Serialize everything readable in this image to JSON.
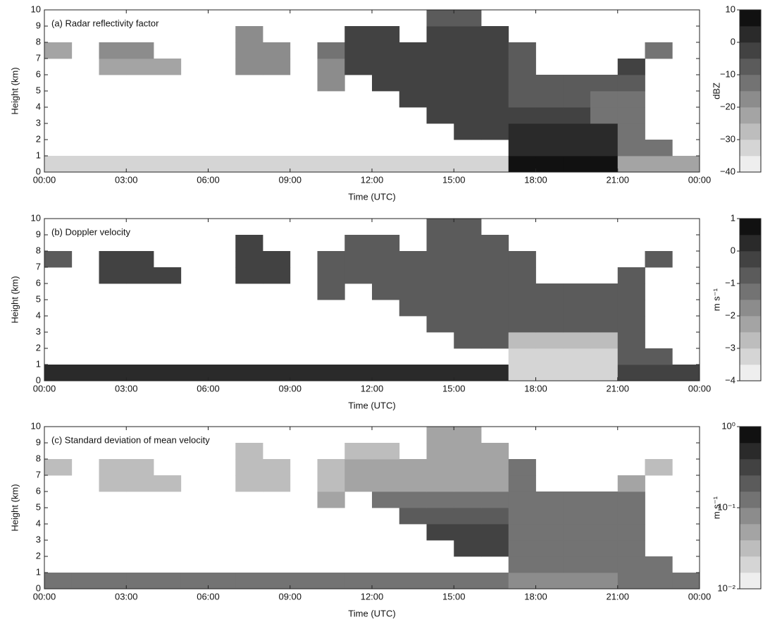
{
  "chart_data": [
    {
      "type": "heatmap",
      "title": "(a) Radar reflectivity factor",
      "xlabel": "Time (UTC)",
      "ylabel": "Height (km)",
      "xlim": [
        0,
        24
      ],
      "xticks": [
        {
          "value": 0,
          "label": "00:00"
        },
        {
          "value": 3,
          "label": "03:00"
        },
        {
          "value": 6,
          "label": "06:00"
        },
        {
          "value": 9,
          "label": "09:00"
        },
        {
          "value": 12,
          "label": "12:00"
        },
        {
          "value": 15,
          "label": "15:00"
        },
        {
          "value": 18,
          "label": "18:00"
        },
        {
          "value": 21,
          "label": "21:00"
        },
        {
          "value": 24,
          "label": "00:00"
        }
      ],
      "ylim": [
        0,
        10
      ],
      "yticks": [
        0,
        1,
        2,
        3,
        4,
        5,
        6,
        7,
        8,
        9,
        10
      ],
      "xbins": [
        0,
        1,
        2,
        3,
        4,
        5,
        6,
        7,
        8,
        9,
        10,
        11,
        12,
        13,
        14,
        15,
        16,
        17,
        18,
        19,
        20,
        21,
        22,
        23,
        24
      ],
      "ybins": [
        0,
        1,
        2,
        3,
        4,
        5,
        6,
        7,
        8,
        9,
        10
      ],
      "z": [
        [
          -35,
          -35,
          -35,
          -35,
          -35,
          -35,
          -35,
          -35,
          -35,
          -35,
          -35,
          -35,
          -35,
          -35,
          -35,
          -35,
          -35,
          5,
          5,
          5,
          5,
          -25,
          -25,
          -25
        ],
        [
          null,
          null,
          null,
          null,
          null,
          null,
          null,
          null,
          null,
          null,
          null,
          null,
          null,
          null,
          null,
          null,
          null,
          0,
          0,
          0,
          0,
          -15,
          -15,
          null
        ],
        [
          null,
          null,
          null,
          null,
          null,
          null,
          null,
          null,
          null,
          null,
          null,
          null,
          null,
          null,
          null,
          -5,
          -5,
          0,
          0,
          0,
          0,
          -15,
          null,
          null
        ],
        [
          null,
          null,
          null,
          null,
          null,
          null,
          null,
          null,
          null,
          null,
          null,
          null,
          null,
          null,
          -5,
          -5,
          -5,
          -5,
          -5,
          -5,
          -15,
          -15,
          null,
          null
        ],
        [
          null,
          null,
          null,
          null,
          null,
          null,
          null,
          null,
          null,
          null,
          null,
          null,
          null,
          -5,
          -5,
          -5,
          -5,
          -10,
          -10,
          -10,
          -15,
          -15,
          null,
          null
        ],
        [
          null,
          null,
          null,
          null,
          null,
          null,
          null,
          null,
          null,
          null,
          -20,
          null,
          -5,
          -5,
          -5,
          -5,
          -5,
          -10,
          -10,
          -10,
          -10,
          -10,
          null,
          null
        ],
        [
          null,
          null,
          -25,
          -25,
          -25,
          null,
          null,
          -20,
          -20,
          null,
          -20,
          -5,
          -5,
          -5,
          -5,
          -5,
          -5,
          -10,
          null,
          null,
          null,
          -5,
          null,
          null
        ],
        [
          -25,
          null,
          -20,
          -20,
          null,
          null,
          null,
          -20,
          -20,
          null,
          -15,
          -5,
          -5,
          -5,
          -5,
          -5,
          -5,
          -10,
          null,
          null,
          null,
          null,
          -15,
          null
        ],
        [
          null,
          null,
          null,
          null,
          null,
          null,
          null,
          -20,
          null,
          null,
          null,
          -5,
          -5,
          null,
          -5,
          -5,
          -5,
          null,
          null,
          null,
          null,
          null,
          null,
          null
        ],
        [
          null,
          null,
          null,
          null,
          null,
          null,
          null,
          null,
          null,
          null,
          null,
          null,
          null,
          null,
          -10,
          -10,
          null,
          null,
          null,
          null,
          null,
          null,
          null,
          null
        ]
      ],
      "colorbar": {
        "label": "dBZ",
        "lim": [
          -40,
          10
        ],
        "ticks": [
          {
            "value": -40,
            "label": "−40"
          },
          {
            "value": -30,
            "label": "−30"
          },
          {
            "value": -20,
            "label": "−20"
          },
          {
            "value": -10,
            "label": "−10"
          },
          0,
          10
        ],
        "log": false,
        "colors": [
          "#eeeeee",
          "#111111"
        ]
      }
    },
    {
      "type": "heatmap",
      "title": "(b) Doppler velocity",
      "xlabel": "Time (UTC)",
      "ylabel": "Height (km)",
      "xlim": [
        0,
        24
      ],
      "xticks": [
        {
          "value": 0,
          "label": "00:00"
        },
        {
          "value": 3,
          "label": "03:00"
        },
        {
          "value": 6,
          "label": "06:00"
        },
        {
          "value": 9,
          "label": "09:00"
        },
        {
          "value": 12,
          "label": "12:00"
        },
        {
          "value": 15,
          "label": "15:00"
        },
        {
          "value": 18,
          "label": "18:00"
        },
        {
          "value": 21,
          "label": "21:00"
        },
        {
          "value": 24,
          "label": "00:00"
        }
      ],
      "ylim": [
        0,
        10
      ],
      "yticks": [
        0,
        1,
        2,
        3,
        4,
        5,
        6,
        7,
        8,
        9,
        10
      ],
      "xbins": [
        0,
        1,
        2,
        3,
        4,
        5,
        6,
        7,
        8,
        9,
        10,
        11,
        12,
        13,
        14,
        15,
        16,
        17,
        18,
        19,
        20,
        21,
        22,
        23,
        24
      ],
      "ybins": [
        0,
        1,
        2,
        3,
        4,
        5,
        6,
        7,
        8,
        9,
        10
      ],
      "z": [
        [
          0,
          0,
          0,
          0,
          0,
          0,
          0,
          0,
          0,
          0,
          0,
          0,
          0,
          0,
          0,
          0,
          0,
          -3.5,
          -3.5,
          -3.5,
          -3.5,
          -0.5,
          -0.5,
          -0.5
        ],
        [
          null,
          null,
          null,
          null,
          null,
          null,
          null,
          null,
          null,
          null,
          null,
          null,
          null,
          null,
          null,
          null,
          null,
          -3.5,
          -3.5,
          -3.5,
          -3.5,
          -1,
          -1,
          null
        ],
        [
          null,
          null,
          null,
          null,
          null,
          null,
          null,
          null,
          null,
          null,
          null,
          null,
          null,
          null,
          null,
          -1,
          -1,
          -3,
          -3,
          -3,
          -3,
          -1,
          null,
          null
        ],
        [
          null,
          null,
          null,
          null,
          null,
          null,
          null,
          null,
          null,
          null,
          null,
          null,
          null,
          null,
          -1,
          -1,
          -1,
          -1,
          -1,
          -1,
          -1,
          -1,
          null,
          null
        ],
        [
          null,
          null,
          null,
          null,
          null,
          null,
          null,
          null,
          null,
          null,
          null,
          null,
          null,
          -1,
          -1,
          -1,
          -1,
          -1,
          -1,
          -1,
          -1,
          -1,
          null,
          null
        ],
        [
          null,
          null,
          null,
          null,
          null,
          null,
          null,
          null,
          null,
          null,
          -1,
          null,
          -1,
          -1,
          -1,
          -1,
          -1,
          -1,
          -1,
          -1,
          -1,
          -1,
          null,
          null
        ],
        [
          null,
          null,
          -0.5,
          -0.5,
          -0.5,
          null,
          null,
          -0.5,
          -0.5,
          null,
          -1,
          -1,
          -1,
          -1,
          -1,
          -1,
          -1,
          -1,
          null,
          null,
          null,
          -1,
          null,
          null
        ],
        [
          -1,
          null,
          -0.5,
          -0.5,
          null,
          null,
          null,
          -0.5,
          -0.5,
          null,
          -1,
          -1,
          -1,
          -1,
          -1,
          -1,
          -1,
          -1,
          null,
          null,
          null,
          null,
          -1,
          null
        ],
        [
          null,
          null,
          null,
          null,
          null,
          null,
          null,
          -0.5,
          null,
          null,
          null,
          -1,
          -1,
          null,
          -1,
          -1,
          -1,
          null,
          null,
          null,
          null,
          null,
          null,
          null
        ],
        [
          null,
          null,
          null,
          null,
          null,
          null,
          null,
          null,
          null,
          null,
          null,
          null,
          null,
          null,
          -1,
          -1,
          null,
          null,
          null,
          null,
          null,
          null,
          null,
          null
        ]
      ],
      "colorbar": {
        "label": "m s⁻¹",
        "lim": [
          -4,
          1
        ],
        "ticks": [
          {
            "value": -4,
            "label": "−4"
          },
          {
            "value": -3,
            "label": "−3"
          },
          {
            "value": -2,
            "label": "−2"
          },
          {
            "value": -1,
            "label": "−1"
          },
          0,
          1
        ],
        "log": false,
        "colors": [
          "#eeeeee",
          "#111111"
        ]
      }
    },
    {
      "type": "heatmap",
      "title": "(c) Standard deviation of mean velocity",
      "xlabel": "Time (UTC)",
      "ylabel": "Height (km)",
      "xlim": [
        0,
        24
      ],
      "xticks": [
        {
          "value": 0,
          "label": "00:00"
        },
        {
          "value": 3,
          "label": "03:00"
        },
        {
          "value": 6,
          "label": "06:00"
        },
        {
          "value": 9,
          "label": "09:00"
        },
        {
          "value": 12,
          "label": "12:00"
        },
        {
          "value": 15,
          "label": "15:00"
        },
        {
          "value": 18,
          "label": "18:00"
        },
        {
          "value": 21,
          "label": "21:00"
        },
        {
          "value": 24,
          "label": "00:00"
        }
      ],
      "ylim": [
        0,
        10
      ],
      "yticks": [
        0,
        1,
        2,
        3,
        4,
        5,
        6,
        7,
        8,
        9,
        10
      ],
      "xbins": [
        0,
        1,
        2,
        3,
        4,
        5,
        6,
        7,
        8,
        9,
        10,
        11,
        12,
        13,
        14,
        15,
        16,
        17,
        18,
        19,
        20,
        21,
        22,
        23,
        24
      ],
      "ybins": [
        0,
        1,
        2,
        3,
        4,
        5,
        6,
        7,
        8,
        9,
        10
      ],
      "z": [
        [
          0.1,
          0.1,
          0.1,
          0.1,
          0.1,
          0.1,
          0.1,
          0.1,
          0.1,
          0.1,
          0.1,
          0.1,
          0.1,
          0.1,
          0.1,
          0.1,
          0.1,
          0.08,
          0.08,
          0.08,
          0.08,
          0.1,
          0.1,
          0.1
        ],
        [
          null,
          null,
          null,
          null,
          null,
          null,
          null,
          null,
          null,
          null,
          null,
          null,
          null,
          null,
          null,
          null,
          null,
          0.1,
          0.1,
          0.1,
          0.1,
          0.1,
          0.1,
          null
        ],
        [
          null,
          null,
          null,
          null,
          null,
          null,
          null,
          null,
          null,
          null,
          null,
          null,
          null,
          null,
          null,
          0.3,
          0.3,
          0.1,
          0.1,
          0.1,
          0.1,
          0.1,
          null,
          null
        ],
        [
          null,
          null,
          null,
          null,
          null,
          null,
          null,
          null,
          null,
          null,
          null,
          null,
          null,
          null,
          0.3,
          0.3,
          0.3,
          0.1,
          0.1,
          0.1,
          0.1,
          0.1,
          null,
          null
        ],
        [
          null,
          null,
          null,
          null,
          null,
          null,
          null,
          null,
          null,
          null,
          null,
          null,
          null,
          0.2,
          0.2,
          0.2,
          0.2,
          0.1,
          0.1,
          0.1,
          0.1,
          0.1,
          null,
          null
        ],
        [
          null,
          null,
          null,
          null,
          null,
          null,
          null,
          null,
          null,
          null,
          0.05,
          null,
          0.1,
          0.1,
          0.1,
          0.1,
          0.1,
          0.1,
          0.1,
          0.1,
          0.1,
          0.1,
          null,
          null
        ],
        [
          null,
          null,
          0.03,
          0.03,
          0.03,
          null,
          null,
          0.03,
          0.03,
          null,
          0.03,
          0.05,
          0.05,
          0.05,
          0.05,
          0.05,
          0.05,
          0.1,
          null,
          null,
          null,
          0.05,
          null,
          null
        ],
        [
          0.03,
          null,
          0.03,
          0.03,
          null,
          null,
          null,
          0.03,
          0.03,
          null,
          0.03,
          0.04,
          0.04,
          0.04,
          0.04,
          0.04,
          0.04,
          0.1,
          null,
          null,
          null,
          null,
          0.03,
          null
        ],
        [
          null,
          null,
          null,
          null,
          null,
          null,
          null,
          0.03,
          null,
          null,
          null,
          0.03,
          0.03,
          null,
          0.04,
          0.04,
          0.04,
          null,
          null,
          null,
          null,
          null,
          null,
          null
        ],
        [
          null,
          null,
          null,
          null,
          null,
          null,
          null,
          null,
          null,
          null,
          null,
          null,
          null,
          null,
          0.04,
          0.04,
          null,
          null,
          null,
          null,
          null,
          null,
          null,
          null
        ]
      ],
      "colorbar": {
        "label": "m s⁻¹",
        "lim": [
          0.01,
          1
        ],
        "ticks": [
          {
            "value": 0.01,
            "label": "10⁻²"
          },
          {
            "value": 0.1,
            "label": "10⁻¹"
          },
          {
            "value": 1,
            "label": "10⁰"
          }
        ],
        "log": true,
        "colors": [
          "#eeeeee",
          "#111111"
        ]
      }
    }
  ]
}
